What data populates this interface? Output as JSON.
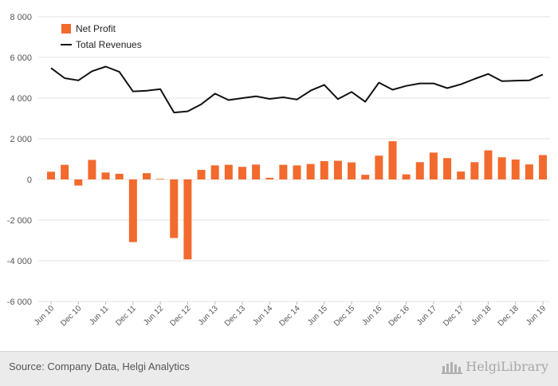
{
  "chart_data": {
    "type": "bar+line",
    "title": "",
    "xlabel": "",
    "ylabel": "",
    "ylim": [
      -6000,
      8000
    ],
    "yticks": [
      -6000,
      -4000,
      -2000,
      0,
      2000,
      4000,
      6000,
      8000
    ],
    "ytick_labels": [
      "-6 000",
      "-4 000",
      "-2 000",
      "0",
      "2 000",
      "4 000",
      "6 000",
      "8 000"
    ],
    "grid": true,
    "legend_position": "top-left",
    "categories": [
      "Jun 10",
      "Sep 10",
      "Dec 10",
      "Mar 11",
      "Jun 11",
      "Sep 11",
      "Dec 11",
      "Mar 12",
      "Jun 12",
      "Sep 12",
      "Dec 12",
      "Mar 13",
      "Jun 13",
      "Sep 13",
      "Dec 13",
      "Mar 14",
      "Jun 14",
      "Sep 14",
      "Dec 14",
      "Mar 15",
      "Jun 15",
      "Sep 15",
      "Dec 15",
      "Mar 16",
      "Jun 16",
      "Sep 16",
      "Dec 16",
      "Mar 17",
      "Jun 17",
      "Sep 17",
      "Dec 17",
      "Mar 18",
      "Jun 18",
      "Sep 18",
      "Dec 18",
      "Mar 19",
      "Jun 19"
    ],
    "tick_labels": [
      "Jun 10",
      "Dec 10",
      "Jun 11",
      "Dec 11",
      "Jun 12",
      "Dec 12",
      "Jun 13",
      "Dec 13",
      "Jun 14",
      "Dec 14",
      "Jun 15",
      "Dec 15",
      "Jun 16",
      "Dec 16",
      "Jun 17",
      "Dec 17",
      "Jun 18",
      "Dec 18",
      "Jun 19"
    ],
    "series": [
      {
        "name": "Net Profit",
        "type": "bar",
        "color": "#f26a2e",
        "values": [
          380,
          720,
          -300,
          960,
          340,
          280,
          -3080,
          310,
          30,
          -2880,
          -3930,
          470,
          690,
          720,
          620,
          730,
          80,
          720,
          690,
          760,
          900,
          920,
          840,
          230,
          1170,
          1880,
          250,
          850,
          1320,
          1050,
          390,
          850,
          1430,
          1090,
          980,
          740,
          1200
        ]
      },
      {
        "name": "Total Revenues",
        "type": "line",
        "color": "#111111",
        "values": [
          5480,
          4980,
          4870,
          5320,
          5550,
          5290,
          4330,
          4360,
          4440,
          3290,
          3350,
          3700,
          4220,
          3900,
          4000,
          4090,
          3960,
          4040,
          3930,
          4370,
          4650,
          3950,
          4300,
          3820,
          4760,
          4410,
          4600,
          4720,
          4720,
          4490,
          4680,
          4940,
          5190,
          4830,
          4860,
          4870,
          5160
        ]
      }
    ]
  },
  "footer": {
    "source": "Source: Company Data, Helgi Analytics",
    "brand": "HelgiLibrary"
  }
}
